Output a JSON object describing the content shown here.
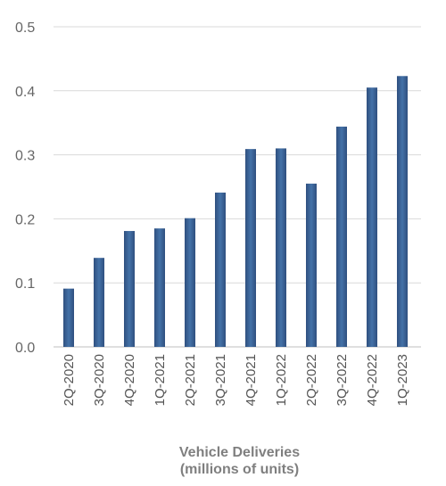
{
  "chart_data": {
    "type": "bar",
    "categories": [
      "2Q-2020",
      "3Q-2020",
      "4Q-2020",
      "1Q-2021",
      "2Q-2021",
      "3Q-2021",
      "4Q-2021",
      "1Q-2022",
      "2Q-2022",
      "3Q-2022",
      "4Q-2022",
      "1Q-2023"
    ],
    "values": [
      0.091,
      0.139,
      0.181,
      0.185,
      0.201,
      0.241,
      0.309,
      0.31,
      0.255,
      0.344,
      0.405,
      0.423
    ],
    "yticks": [
      "0.0",
      "0.1",
      "0.2",
      "0.3",
      "0.4",
      "0.5"
    ],
    "ylim": [
      0,
      0.5
    ],
    "grid": true,
    "xlabel_line1": "Vehicle Deliveries",
    "xlabel_line2": "(millions of units)",
    "colors": {
      "bar_edge": "#2f4f7f",
      "bar_center": "#4472a8",
      "grid": "#d9d9d9",
      "axis": "#bfbfbf"
    }
  }
}
